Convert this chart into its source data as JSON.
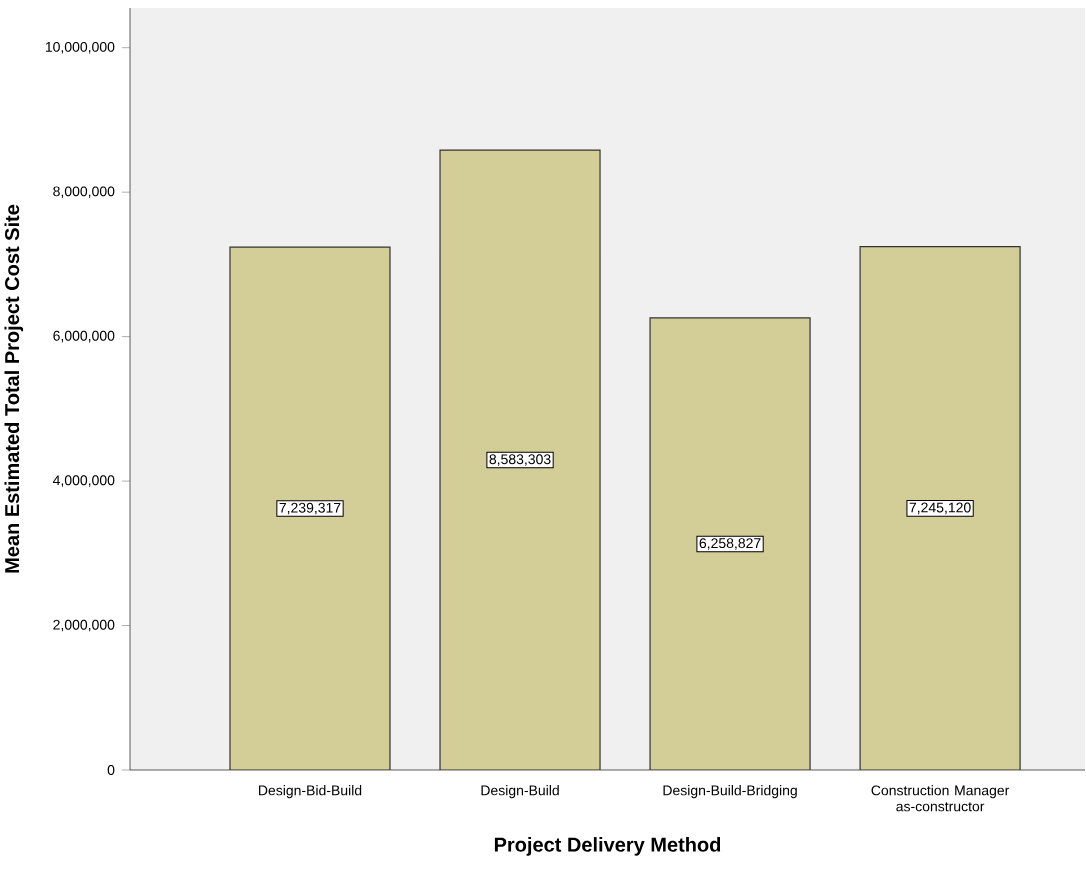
{
  "chart_data": {
    "type": "bar",
    "xlabel": "Project Delivery Method",
    "ylabel": "Mean Estimated Total Project Cost Site",
    "categories": [
      "Design-Bid-Build",
      "Design-Build",
      "Design-Build-Bridging",
      "Construction Manager as-constructor"
    ],
    "values": [
      7239317,
      8583303,
      6258827,
      7245120
    ],
    "value_labels": [
      "7,239,317",
      "8,583,303",
      "6,258,827",
      "7,245,120"
    ],
    "color": "#d3ce97",
    "ylim": [
      0,
      10550000
    ],
    "yticks": [
      {
        "value": 0,
        "label": "0"
      },
      {
        "value": 2000000,
        "label": "2,000,000"
      },
      {
        "value": 4000000,
        "label": "4,000,000"
      },
      {
        "value": 6000000,
        "label": "6,000,000"
      },
      {
        "value": 8000000,
        "label": "8,000,000"
      },
      {
        "value": 10000000,
        "label": "10,000,000"
      }
    ]
  }
}
